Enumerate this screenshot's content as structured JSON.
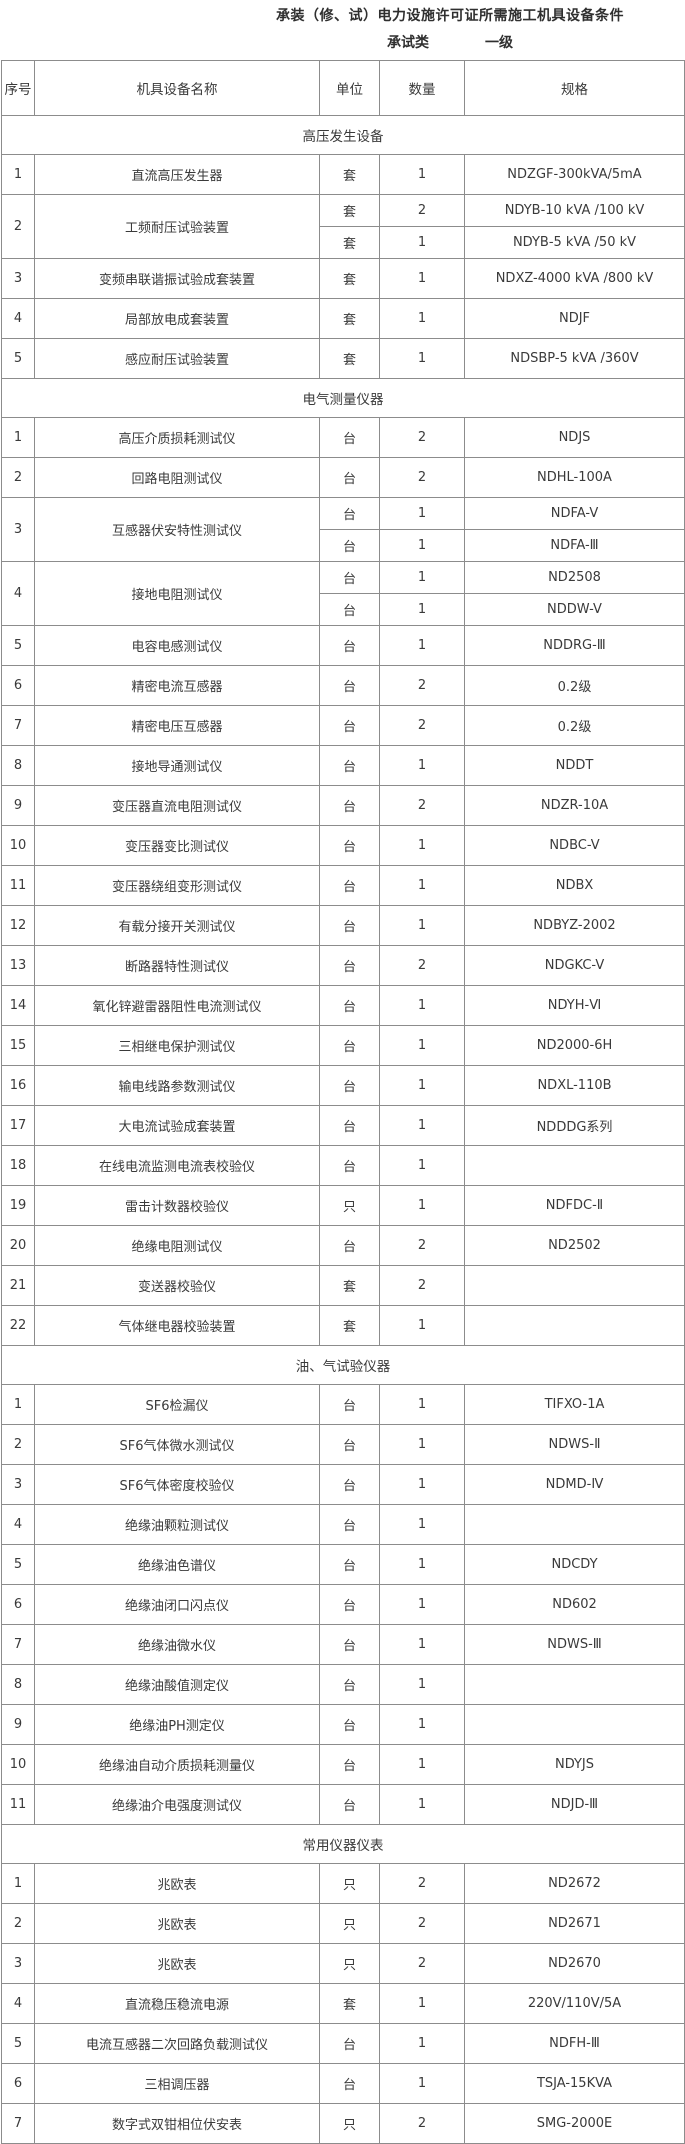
{
  "title": "承装（修、试）电力设施许可证所需施工机具设备条件",
  "subtitle": {
    "part1": "承试类",
    "part2": "一级"
  },
  "colors": {
    "border": "#8c8c8c",
    "text": "#3a3a3a",
    "background": "#ffffff"
  },
  "table": {
    "columns": [
      "序号",
      "机具设备名称",
      "单位",
      "数量",
      "规格"
    ],
    "sections": [
      {
        "name": "高压发生设备",
        "items": [
          {
            "no": "1",
            "name": "直流高压发生器",
            "entries": [
              {
                "unit": "套",
                "qty": "1",
                "spec": "NDZGF-300kVA/5mA"
              }
            ]
          },
          {
            "no": "2",
            "name": "工频耐压试验装置",
            "entries": [
              {
                "unit": "套",
                "qty": "2",
                "spec": "NDYB-10 kVA /100 kV"
              },
              {
                "unit": "套",
                "qty": "1",
                "spec": "NDYB-5 kVA /50 kV"
              }
            ]
          },
          {
            "no": "3",
            "name": "变频串联谐振试验成套装置",
            "entries": [
              {
                "unit": "套",
                "qty": "1",
                "spec": "NDXZ-4000 kVA /800 kV"
              }
            ]
          },
          {
            "no": "4",
            "name": "局部放电成套装置",
            "entries": [
              {
                "unit": "套",
                "qty": "1",
                "spec": "NDJF"
              }
            ]
          },
          {
            "no": "5",
            "name": "感应耐压试验装置",
            "entries": [
              {
                "unit": "套",
                "qty": "1",
                "spec": "NDSBP-5 kVA /360V"
              }
            ]
          }
        ]
      },
      {
        "name": "电气测量仪器",
        "items": [
          {
            "no": "1",
            "name": "高压介质损耗测试仪",
            "entries": [
              {
                "unit": "台",
                "qty": "2",
                "spec": "NDJS"
              }
            ]
          },
          {
            "no": "2",
            "name": "回路电阻测试仪",
            "entries": [
              {
                "unit": "台",
                "qty": "2",
                "spec": "NDHL-100A"
              }
            ]
          },
          {
            "no": "3",
            "name": "互感器伏安特性测试仪",
            "entries": [
              {
                "unit": "台",
                "qty": "1",
                "spec": "NDFA-V"
              },
              {
                "unit": "台",
                "qty": "1",
                "spec": "NDFA-Ⅲ"
              }
            ]
          },
          {
            "no": "4",
            "name": "接地电阻测试仪",
            "entries": [
              {
                "unit": "台",
                "qty": "1",
                "spec": "ND2508"
              },
              {
                "unit": "台",
                "qty": "1",
                "spec": "NDDW-V"
              }
            ]
          },
          {
            "no": "5",
            "name": "电容电感测试仪",
            "entries": [
              {
                "unit": "台",
                "qty": "1",
                "spec": "NDDRG-Ⅲ"
              }
            ]
          },
          {
            "no": "6",
            "name": "精密电流互感器",
            "entries": [
              {
                "unit": "台",
                "qty": "2",
                "spec": "0.2级"
              }
            ]
          },
          {
            "no": "7",
            "name": "精密电压互感器",
            "entries": [
              {
                "unit": "台",
                "qty": "2",
                "spec": "0.2级"
              }
            ]
          },
          {
            "no": "8",
            "name": "接地导通测试仪",
            "entries": [
              {
                "unit": "台",
                "qty": "1",
                "spec": "NDDT"
              }
            ]
          },
          {
            "no": "9",
            "name": "变压器直流电阻测试仪",
            "entries": [
              {
                "unit": "台",
                "qty": "2",
                "spec": "NDZR-10A"
              }
            ]
          },
          {
            "no": "10",
            "name": "变压器变比测试仪",
            "entries": [
              {
                "unit": "台",
                "qty": "1",
                "spec": "NDBC-V"
              }
            ]
          },
          {
            "no": "11",
            "name": "变压器绕组变形测试仪",
            "entries": [
              {
                "unit": "台",
                "qty": "1",
                "spec": "NDBX"
              }
            ]
          },
          {
            "no": "12",
            "name": "有载分接开关测试仪",
            "entries": [
              {
                "unit": "台",
                "qty": "1",
                "spec": "NDBYZ-2002"
              }
            ]
          },
          {
            "no": "13",
            "name": "断路器特性测试仪",
            "entries": [
              {
                "unit": "台",
                "qty": "2",
                "spec": "NDGKC-V"
              }
            ]
          },
          {
            "no": "14",
            "name": "氧化锌避雷器阻性电流测试仪",
            "entries": [
              {
                "unit": "台",
                "qty": "1",
                "spec": "NDYH-Ⅵ"
              }
            ]
          },
          {
            "no": "15",
            "name": "三相继电保护测试仪",
            "entries": [
              {
                "unit": "台",
                "qty": "1",
                "spec": "ND2000-6H"
              }
            ]
          },
          {
            "no": "16",
            "name": "输电线路参数测试仪",
            "entries": [
              {
                "unit": "台",
                "qty": "1",
                "spec": "NDXL-110B"
              }
            ]
          },
          {
            "no": "17",
            "name": "大电流试验成套装置",
            "entries": [
              {
                "unit": "台",
                "qty": "1",
                "spec": "NDDDG系列"
              }
            ]
          },
          {
            "no": "18",
            "name": "在线电流监测电流表校验仪",
            "entries": [
              {
                "unit": "台",
                "qty": "1",
                "spec": ""
              }
            ]
          },
          {
            "no": "19",
            "name": "雷击计数器校验仪",
            "entries": [
              {
                "unit": "只",
                "qty": "1",
                "spec": "NDFDC-Ⅱ"
              }
            ]
          },
          {
            "no": "20",
            "name": "绝缘电阻测试仪",
            "entries": [
              {
                "unit": "台",
                "qty": "2",
                "spec": "ND2502"
              }
            ]
          },
          {
            "no": "21",
            "name": "变送器校验仪",
            "entries": [
              {
                "unit": "套",
                "qty": "2",
                "spec": ""
              }
            ]
          },
          {
            "no": "22",
            "name": "气体继电器校验装置",
            "entries": [
              {
                "unit": "套",
                "qty": "1",
                "spec": ""
              }
            ]
          }
        ]
      },
      {
        "name": "油、气试验仪器",
        "items": [
          {
            "no": "1",
            "name": "SF6检漏仪",
            "entries": [
              {
                "unit": "台",
                "qty": "1",
                "spec": "TIFXO-1A"
              }
            ]
          },
          {
            "no": "2",
            "name": "SF6气体微水测试仪",
            "entries": [
              {
                "unit": "台",
                "qty": "1",
                "spec": "NDWS-Ⅱ"
              }
            ]
          },
          {
            "no": "3",
            "name": "SF6气体密度校验仪",
            "entries": [
              {
                "unit": "台",
                "qty": "1",
                "spec": "NDMD-Ⅳ"
              }
            ]
          },
          {
            "no": "4",
            "name": "绝缘油颗粒测试仪",
            "entries": [
              {
                "unit": "台",
                "qty": "1",
                "spec": ""
              }
            ]
          },
          {
            "no": "5",
            "name": "绝缘油色谱仪",
            "entries": [
              {
                "unit": "台",
                "qty": "1",
                "spec": "NDCDY"
              }
            ]
          },
          {
            "no": "6",
            "name": "绝缘油闭口闪点仪",
            "entries": [
              {
                "unit": "台",
                "qty": "1",
                "spec": "ND602"
              }
            ]
          },
          {
            "no": "7",
            "name": "绝缘油微水仪",
            "entries": [
              {
                "unit": "台",
                "qty": "1",
                "spec": "NDWS-Ⅲ"
              }
            ]
          },
          {
            "no": "8",
            "name": "绝缘油酸值测定仪",
            "entries": [
              {
                "unit": "台",
                "qty": "1",
                "spec": ""
              }
            ]
          },
          {
            "no": "9",
            "name": "绝缘油PH测定仪",
            "entries": [
              {
                "unit": "台",
                "qty": "1",
                "spec": ""
              }
            ]
          },
          {
            "no": "10",
            "name": "绝缘油自动介质损耗测量仪",
            "entries": [
              {
                "unit": "台",
                "qty": "1",
                "spec": "NDYJS"
              }
            ]
          },
          {
            "no": "11",
            "name": "绝缘油介电强度测试仪",
            "entries": [
              {
                "unit": "台",
                "qty": "1",
                "spec": "NDJD-Ⅲ"
              }
            ]
          }
        ]
      },
      {
        "name": "常用仪器仪表",
        "items": [
          {
            "no": "1",
            "name": "兆欧表",
            "entries": [
              {
                "unit": "只",
                "qty": "2",
                "spec": "ND2672"
              }
            ]
          },
          {
            "no": "2",
            "name": "兆欧表",
            "entries": [
              {
                "unit": "只",
                "qty": "2",
                "spec": "ND2671"
              }
            ]
          },
          {
            "no": "3",
            "name": "兆欧表",
            "entries": [
              {
                "unit": "只",
                "qty": "2",
                "spec": "ND2670"
              }
            ]
          },
          {
            "no": "4",
            "name": "直流稳压稳流电源",
            "entries": [
              {
                "unit": "套",
                "qty": "1",
                "spec": "220V/110V/5A"
              }
            ]
          },
          {
            "no": "5",
            "name": "电流互感器二次回路负载测试仪",
            "entries": [
              {
                "unit": "台",
                "qty": "1",
                "spec": "NDFH-Ⅲ"
              }
            ]
          },
          {
            "no": "6",
            "name": "三相调压器",
            "entries": [
              {
                "unit": "台",
                "qty": "1",
                "spec": "TSJA-15KVA"
              }
            ]
          },
          {
            "no": "7",
            "name": "数字式双钳相位伏安表",
            "entries": [
              {
                "unit": "只",
                "qty": "2",
                "spec": "SMG-2000E"
              }
            ]
          }
        ]
      }
    ]
  }
}
